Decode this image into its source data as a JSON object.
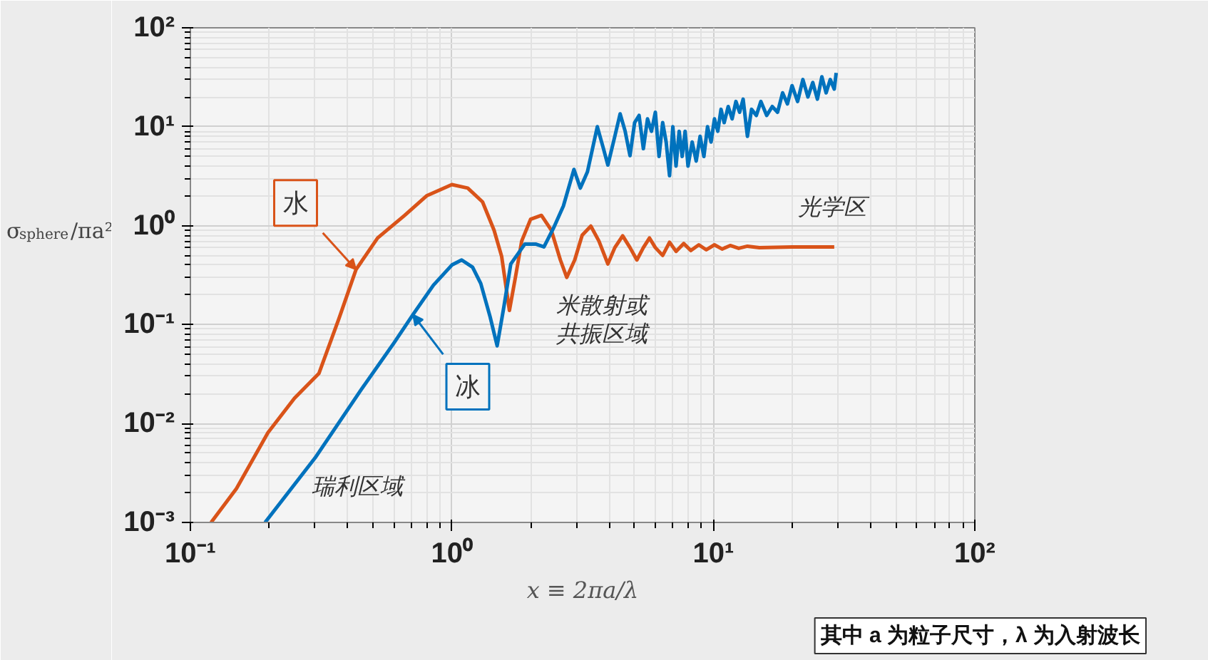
{
  "chart_data": {
    "type": "line",
    "xlabel": "x ≡ 2πa/λ",
    "ylabel": "σ$_{sphere}$/πa²",
    "log": "xy",
    "grid": true,
    "legend": false,
    "xlim": [
      0.1,
      100
    ],
    "ylim": [
      0.001,
      100
    ],
    "xticks": [
      {
        "value": 0.1,
        "label": "10⁻¹"
      },
      {
        "value": 1,
        "label": "10⁰"
      },
      {
        "value": 10,
        "label": "10¹"
      },
      {
        "value": 100,
        "label": "10²"
      }
    ],
    "yticks": [
      {
        "value": 0.001,
        "label": "10⁻³"
      },
      {
        "value": 0.01,
        "label": "10⁻²"
      },
      {
        "value": 0.1,
        "label": "10⁻¹"
      },
      {
        "value": 1,
        "label": "10⁰"
      },
      {
        "value": 10,
        "label": "10¹"
      },
      {
        "value": 100,
        "label": "10²"
      }
    ],
    "series": [
      {
        "name": "水",
        "color": "#d95319",
        "x": [
          0.12,
          0.15,
          0.198,
          0.25,
          0.31,
          0.37,
          0.43,
          0.52,
          0.66,
          0.8,
          1.0,
          1.15,
          1.31,
          1.45,
          1.55,
          1.66,
          1.75,
          1.85,
          2.0,
          2.2,
          2.4,
          2.6,
          2.75,
          2.95,
          3.15,
          3.4,
          3.65,
          3.95,
          4.2,
          4.5,
          4.8,
          5.1,
          5.4,
          5.7,
          6.0,
          6.4,
          6.8,
          7.2,
          7.7,
          8.2,
          8.8,
          9.4,
          10.1,
          10.8,
          11.6,
          12.5,
          13.5,
          15,
          20,
          25,
          29
        ],
        "values": [
          0.001,
          0.0022,
          0.0081,
          0.018,
          0.032,
          0.115,
          0.36,
          0.75,
          1.27,
          2.0,
          2.6,
          2.4,
          1.74,
          0.9,
          0.49,
          0.139,
          0.3,
          0.7,
          1.16,
          1.27,
          0.9,
          0.45,
          0.3,
          0.45,
          0.8,
          0.99,
          0.7,
          0.41,
          0.6,
          0.79,
          0.6,
          0.45,
          0.6,
          0.75,
          0.6,
          0.5,
          0.68,
          0.55,
          0.66,
          0.56,
          0.64,
          0.57,
          0.64,
          0.58,
          0.63,
          0.59,
          0.62,
          0.6,
          0.61,
          0.61,
          0.61
        ]
      },
      {
        "name": "冰",
        "color": "#0072bd",
        "x": [
          0.193,
          0.3,
          0.45,
          0.6,
          0.71,
          0.85,
          1.0,
          1.09,
          1.2,
          1.29,
          1.4,
          1.49,
          1.58,
          1.68,
          1.9,
          2.1,
          2.25,
          2.45,
          2.67,
          2.93,
          3.1,
          3.3,
          3.6,
          3.8,
          3.95,
          4.2,
          4.4,
          4.6,
          4.8,
          5.0,
          5.2,
          5.4,
          5.6,
          5.8,
          6.0,
          6.2,
          6.4,
          6.6,
          6.8,
          7.0,
          7.2,
          7.4,
          7.6,
          7.8,
          8.0,
          8.3,
          8.6,
          8.9,
          9.2,
          9.5,
          9.8,
          10.1,
          10.4,
          10.7,
          11.0,
          11.4,
          11.8,
          12.2,
          12.6,
          13.0,
          13.5,
          14,
          14.6,
          15.2,
          16,
          16.8,
          17.6,
          18.4,
          19.2,
          20,
          21,
          22,
          23,
          24,
          25,
          26,
          27,
          28,
          29,
          29.5
        ],
        "values": [
          0.001,
          0.0045,
          0.022,
          0.065,
          0.126,
          0.25,
          0.4,
          0.45,
          0.38,
          0.26,
          0.12,
          0.061,
          0.15,
          0.41,
          0.65,
          0.65,
          0.61,
          0.95,
          1.58,
          3.7,
          2.4,
          3.5,
          10,
          6,
          4.1,
          8,
          13.5,
          9,
          5.1,
          11,
          13,
          6,
          12,
          9,
          14,
          5,
          11,
          7,
          3.2,
          10,
          4,
          9,
          5,
          9,
          4,
          7,
          4.5,
          8,
          5,
          10,
          7,
          12,
          9,
          15,
          11,
          16,
          12,
          18,
          14,
          19,
          8,
          15,
          13,
          18,
          13,
          16,
          14,
          22,
          17,
          26,
          18,
          30,
          20,
          28,
          19,
          32,
          22,
          30,
          24,
          35
        ]
      }
    ],
    "annotations": [
      {
        "text": "瑞利区域",
        "x": 0.29,
        "y": 0.003
      },
      "米散射或共振区域",
      "光学区",
      "其中 a 为粒子尺寸，λ 为入射波长"
    ]
  }
}
